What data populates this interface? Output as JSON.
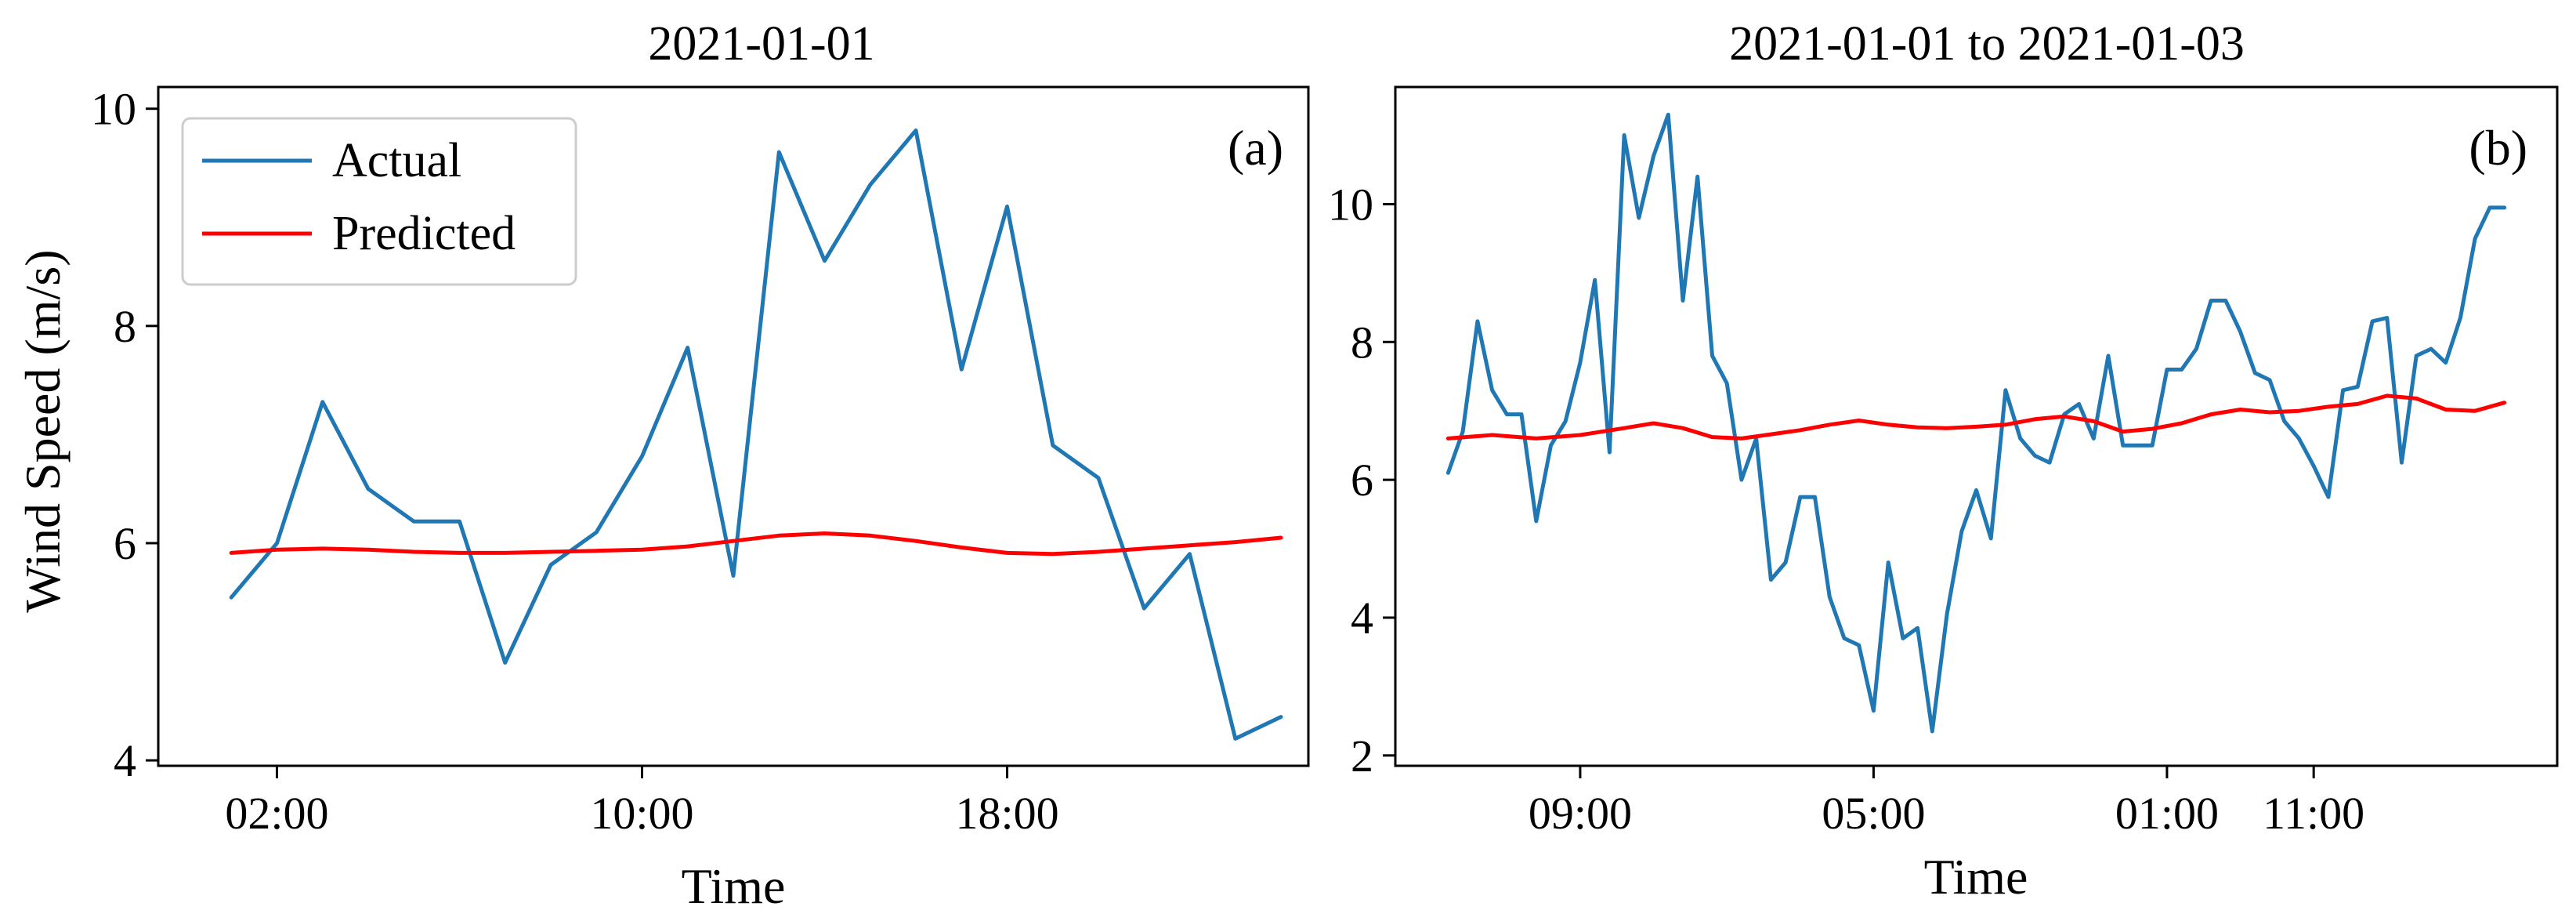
{
  "chart_data": [
    {
      "type": "line",
      "title": "2021-01-01",
      "panel_label": "(a)",
      "xlabel": "Time",
      "ylabel": "Wind Speed (m/s)",
      "x_unit": "hour",
      "xlim": [
        -0.6,
        24.6
      ],
      "ylim": [
        3.95,
        10.2
      ],
      "xticks": [
        {
          "value": 2,
          "label": "02:00"
        },
        {
          "value": 10,
          "label": "10:00"
        },
        {
          "value": 18,
          "label": "18:00"
        }
      ],
      "yticks": [
        {
          "value": 4,
          "label": "4"
        },
        {
          "value": 6,
          "label": "6"
        },
        {
          "value": 8,
          "label": "8"
        },
        {
          "value": 10,
          "label": "10"
        }
      ],
      "legend": {
        "position": "upper-left",
        "entries": [
          "Actual",
          "Predicted"
        ]
      },
      "series": [
        {
          "name": "Actual",
          "color": "#1f77b4",
          "x": [
            1,
            2,
            3,
            4,
            5,
            6,
            7,
            8,
            9,
            10,
            11,
            12,
            13,
            14,
            15,
            16,
            17,
            18,
            19,
            20,
            21,
            22,
            23,
            24
          ],
          "values": [
            5.5,
            6.0,
            7.3,
            6.5,
            6.2,
            6.2,
            4.9,
            5.8,
            6.1,
            6.8,
            7.8,
            5.7,
            9.6,
            8.6,
            9.3,
            9.8,
            7.6,
            9.1,
            6.9,
            6.6,
            5.4,
            5.9,
            4.2,
            4.4
          ]
        },
        {
          "name": "Predicted",
          "color": "#ff0000",
          "x": [
            1,
            2,
            3,
            4,
            5,
            6,
            7,
            8,
            9,
            10,
            11,
            12,
            13,
            14,
            15,
            16,
            17,
            18,
            19,
            20,
            21,
            22,
            23,
            24
          ],
          "values": [
            5.91,
            5.94,
            5.95,
            5.94,
            5.92,
            5.91,
            5.91,
            5.92,
            5.93,
            5.94,
            5.97,
            6.02,
            6.07,
            6.09,
            6.07,
            6.02,
            5.96,
            5.91,
            5.9,
            5.92,
            5.95,
            5.98,
            6.01,
            6.05
          ]
        }
      ]
    },
    {
      "type": "line",
      "title": "2021-01-01 to 2021-01-03",
      "panel_label": "(b)",
      "xlabel": "Time",
      "ylabel": "",
      "x_unit": "hour",
      "xlim": [
        -3.6,
        75.6
      ],
      "ylim": [
        1.85,
        11.7
      ],
      "xticks": [
        {
          "value": 9,
          "label": "09:00"
        },
        {
          "value": 29,
          "label": "05:00"
        },
        {
          "value": 49,
          "label": "01:00"
        },
        {
          "value": 59,
          "label": "11:00"
        }
      ],
      "yticks": [
        {
          "value": 2,
          "label": "2"
        },
        {
          "value": 4,
          "label": "4"
        },
        {
          "value": 6,
          "label": "6"
        },
        {
          "value": 8,
          "label": "8"
        },
        {
          "value": 10,
          "label": "10"
        }
      ],
      "legend": null,
      "series": [
        {
          "name": "Actual",
          "color": "#1f77b4",
          "x": [
            0,
            1,
            2,
            3,
            4,
            5,
            6,
            7,
            8,
            9,
            10,
            11,
            12,
            13,
            14,
            15,
            16,
            17,
            18,
            19,
            20,
            21,
            22,
            23,
            24,
            25,
            26,
            27,
            28,
            29,
            30,
            31,
            32,
            33,
            34,
            35,
            36,
            37,
            38,
            39,
            40,
            41,
            42,
            43,
            44,
            45,
            46,
            47,
            48,
            49,
            50,
            51,
            52,
            53,
            54,
            55,
            56,
            57,
            58,
            59,
            60,
            61,
            62,
            63,
            64,
            65,
            66,
            67,
            68,
            69,
            70,
            71,
            72
          ],
          "values": [
            6.1,
            6.7,
            8.3,
            7.3,
            6.95,
            6.95,
            5.4,
            6.5,
            6.85,
            7.7,
            8.9,
            6.4,
            11.0,
            9.8,
            10.7,
            11.3,
            8.6,
            10.4,
            7.8,
            7.4,
            6.0,
            6.6,
            4.55,
            4.8,
            5.75,
            5.75,
            4.3,
            3.7,
            3.6,
            2.65,
            4.8,
            3.7,
            3.85,
            2.35,
            4.05,
            5.25,
            5.85,
            5.15,
            7.3,
            6.6,
            6.35,
            6.25,
            6.95,
            7.1,
            6.6,
            7.8,
            6.5,
            6.5,
            6.5,
            7.6,
            7.6,
            7.9,
            8.6,
            8.6,
            8.15,
            7.55,
            7.45,
            6.85,
            6.6,
            6.2,
            5.75,
            7.3,
            7.35,
            8.3,
            8.35,
            6.25,
            7.8,
            7.9,
            7.7,
            8.35,
            9.5,
            9.95,
            9.95
          ]
        },
        {
          "name": "Predicted",
          "color": "#ff0000",
          "x": [
            0,
            3,
            6,
            9,
            12,
            14,
            16,
            18,
            20,
            22,
            24,
            26,
            28,
            30,
            32,
            34,
            36,
            38,
            40,
            42,
            44,
            46,
            48,
            50,
            52,
            54,
            56,
            58,
            60,
            62,
            64,
            66,
            68,
            70,
            72
          ],
          "values": [
            6.6,
            6.65,
            6.6,
            6.65,
            6.75,
            6.82,
            6.75,
            6.62,
            6.6,
            6.66,
            6.72,
            6.8,
            6.86,
            6.8,
            6.76,
            6.75,
            6.77,
            6.8,
            6.88,
            6.92,
            6.85,
            6.7,
            6.74,
            6.82,
            6.95,
            7.02,
            6.98,
            7.0,
            7.06,
            7.1,
            7.22,
            7.18,
            7.02,
            7.0,
            7.12
          ]
        }
      ]
    }
  ]
}
